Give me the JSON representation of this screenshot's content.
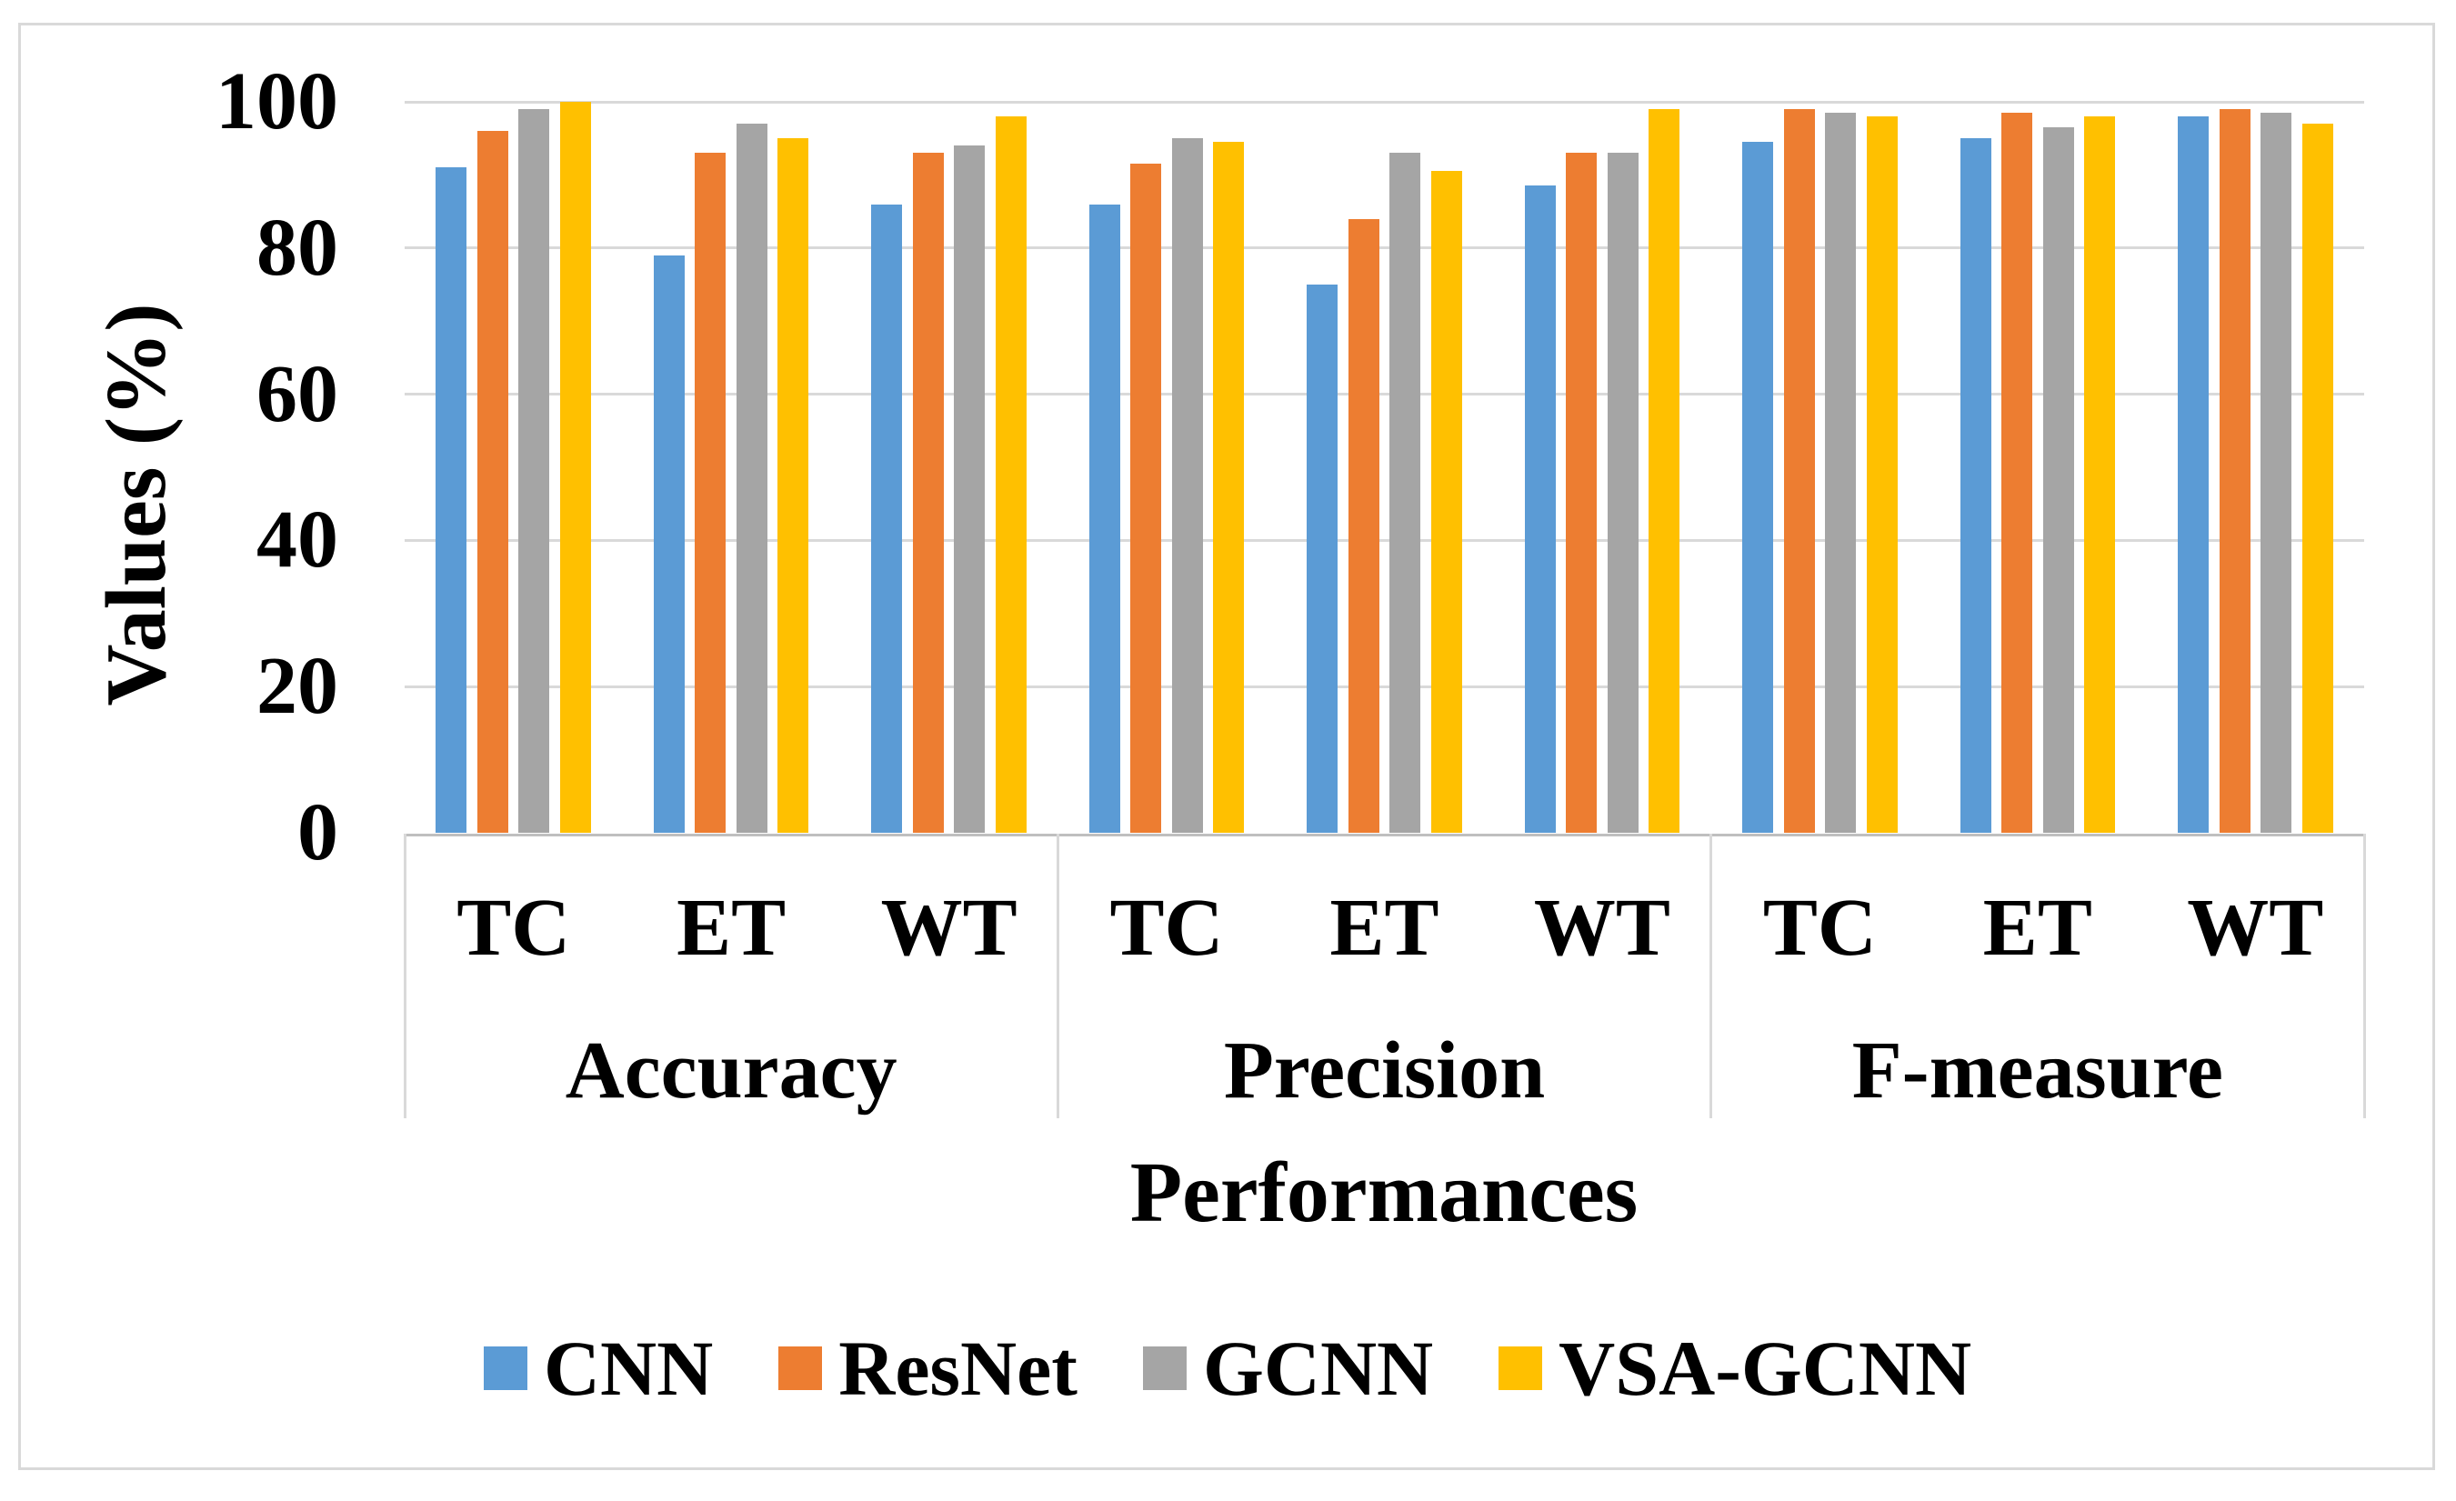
{
  "figure": {
    "background_color": "#ffffff",
    "border_color": "#d9d9d9",
    "gridline_color": "#d9d9d9",
    "axis_line_color": "#bfbfbf",
    "text_color": "#000000"
  },
  "chart_data": {
    "type": "bar",
    "title": "",
    "y_axis": {
      "label": "Values (%)",
      "ticks": [
        0,
        20,
        40,
        60,
        80,
        100
      ],
      "tick_labels": [
        "0",
        "20",
        "40",
        "60",
        "80",
        "100"
      ],
      "range": [
        0,
        100
      ],
      "grid": true
    },
    "x_axis": {
      "label": "Performances",
      "group_labels": [
        "Accuracy",
        "Precision",
        "F-measure"
      ],
      "sub_labels": [
        "TC",
        "ET",
        "WT"
      ],
      "categories": [
        "Accuracy TC",
        "Accuracy ET",
        "Accuracy WT",
        "Precision TC",
        "Precision ET",
        "Precision WT",
        "F-measure TC",
        "F-measure ET",
        "F-measure WT"
      ]
    },
    "series": [
      {
        "name": "CNN",
        "color": "#5B9BD5",
        "values": [
          91,
          79,
          86,
          86,
          75,
          88.5,
          94.5,
          95,
          98
        ]
      },
      {
        "name": "ResNet",
        "color": "#ED7D31",
        "values": [
          96,
          93,
          93,
          91.5,
          84,
          93,
          99,
          98.5,
          99
        ]
      },
      {
        "name": "GCNN",
        "color": "#A5A5A5",
        "values": [
          99,
          97,
          94,
          95,
          93,
          93,
          98.5,
          96.5,
          98.5
        ]
      },
      {
        "name": "VSA-GCNN",
        "color": "#FFC000",
        "values": [
          100,
          95,
          98,
          94.5,
          90.5,
          99,
          98,
          98,
          97
        ]
      }
    ],
    "legend_position": "bottom"
  }
}
